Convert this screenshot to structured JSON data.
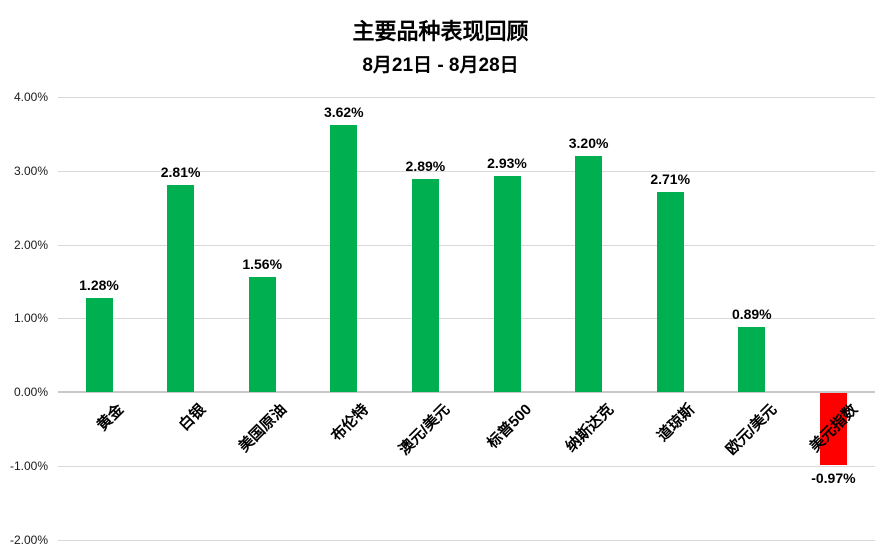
{
  "chart_data": {
    "type": "bar",
    "title": "主要品种表现回顾",
    "subtitle": "8月21日 - 8月28日",
    "categories": [
      "黄金",
      "白银",
      "美国原油",
      "布伦特",
      "澳元/美元",
      "标普500",
      "纳斯达克",
      "道琼斯",
      "欧元/美元",
      "美元指数"
    ],
    "values": [
      1.28,
      2.81,
      1.56,
      3.62,
      2.89,
      2.93,
      3.2,
      2.71,
      0.89,
      -0.97
    ],
    "value_labels": [
      "1.28%",
      "2.81%",
      "1.56%",
      "3.62%",
      "2.89%",
      "2.93%",
      "3.20%",
      "2.71%",
      "0.89%",
      "-0.97%"
    ],
    "xlabel": "",
    "ylabel": "",
    "ylim": [
      -2,
      4
    ],
    "ytick_step": 1,
    "ytick_labels": [
      "4.00%",
      "3.00%",
      "2.00%",
      "1.00%",
      "0.00%",
      "-1.00%",
      "-2.00%"
    ],
    "ytick_values": [
      4,
      3,
      2,
      1,
      0,
      -1,
      -2
    ],
    "grid": true,
    "legend": "none",
    "colors": {
      "positive_bar": "#00B050",
      "negative_bar": "#FF0000",
      "gridline": "#D9D9D9",
      "zero_line": "#C9C9C9",
      "text": "#000000"
    }
  }
}
